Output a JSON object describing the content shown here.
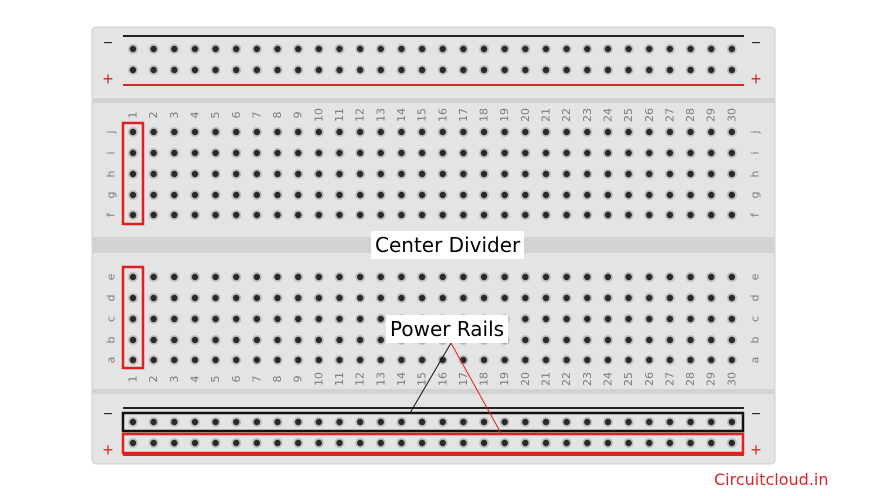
{
  "colors": {
    "board": "#e4e4e4",
    "board_border": "#cccccc",
    "hole": "#2a2a2a",
    "hole_ring": "#bdbdbd",
    "divider": "#d2d2d2",
    "rail_negative": "#222222",
    "rail_positive": "#d62828",
    "highlight_red": "#e02020",
    "highlight_black": "#111111",
    "label_text": "#7a7a7a",
    "watermark": "#d62828"
  },
  "rails": {
    "negative_symbol": "−",
    "positive_symbol": "+"
  },
  "columns": {
    "count": 30,
    "labels": [
      "1",
      "2",
      "3",
      "4",
      "5",
      "6",
      "7",
      "8",
      "9",
      "10",
      "11",
      "12",
      "13",
      "14",
      "15",
      "16",
      "17",
      "18",
      "19",
      "20",
      "21",
      "22",
      "23",
      "24",
      "25",
      "26",
      "27",
      "28",
      "29",
      "30"
    ]
  },
  "rows": {
    "top_block": [
      "j",
      "i",
      "h",
      "g",
      "f"
    ],
    "bottom_block": [
      "e",
      "d",
      "c",
      "b",
      "a"
    ]
  },
  "annotations": {
    "center_divider": "Center Divider",
    "power_rails": "Power Rails"
  },
  "watermark": "Circuitcloud.in"
}
